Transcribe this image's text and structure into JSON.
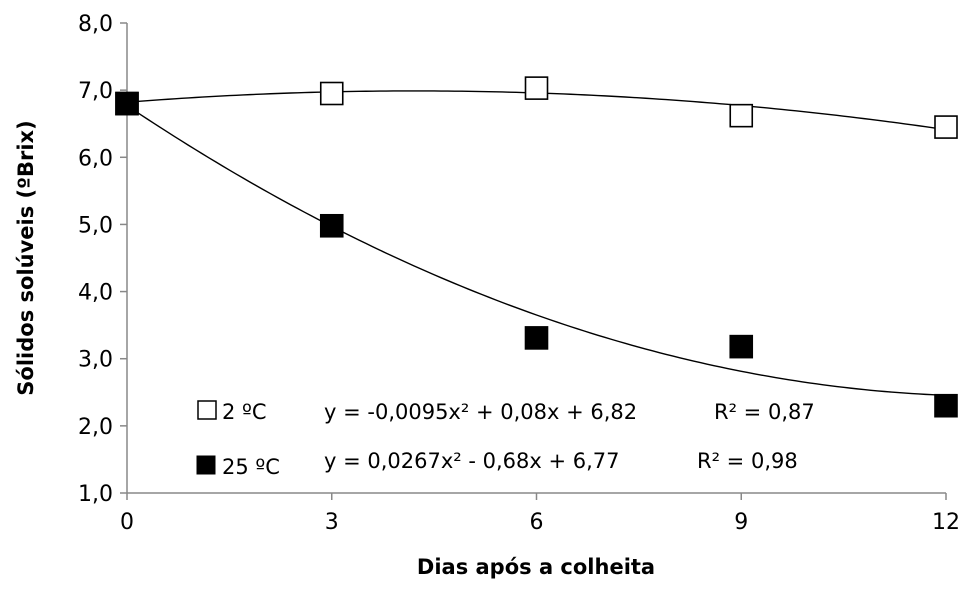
{
  "chart_data": {
    "type": "scatter",
    "xlabel": "Dias após a colheita",
    "ylabel": "Sólidos solúveis (ºBrix)",
    "xlim": [
      0,
      12
    ],
    "ylim": [
      1.0,
      8.0
    ],
    "x_ticks": [
      0,
      3,
      6,
      9,
      12
    ],
    "x_tick_labels": [
      "0",
      "3",
      "6",
      "9",
      "12"
    ],
    "y_ticks": [
      1.0,
      2.0,
      3.0,
      4.0,
      5.0,
      6.0,
      7.0,
      8.0
    ],
    "y_tick_labels": [
      "1,0",
      "2,0",
      "3,0",
      "4,0",
      "5,0",
      "6,0",
      "7,0",
      "8,0"
    ],
    "grid": false,
    "legend_position": "bottom-left",
    "series": [
      {
        "name": "2 ºC",
        "marker": "open-square",
        "color": "#000000",
        "x": [
          0,
          3,
          6,
          9,
          12
        ],
        "y": [
          6.8,
          6.95,
          7.03,
          6.62,
          6.45
        ],
        "fit": {
          "a": -0.0095,
          "b": 0.08,
          "c": 6.82
        },
        "equation": "y = -0,0095x² + 0,08x + 6,82",
        "r2": "R² = 0,87"
      },
      {
        "name": "25 ºC",
        "marker": "filled-square",
        "color": "#000000",
        "x": [
          0,
          3,
          6,
          9,
          12
        ],
        "y": [
          6.8,
          4.98,
          3.31,
          3.18,
          2.3
        ],
        "fit": {
          "a": 0.0267,
          "b": -0.68,
          "c": 6.77
        },
        "equation": "y = 0,0267x² - 0,68x + 6,77",
        "r2": "R² = 0,98"
      }
    ]
  }
}
